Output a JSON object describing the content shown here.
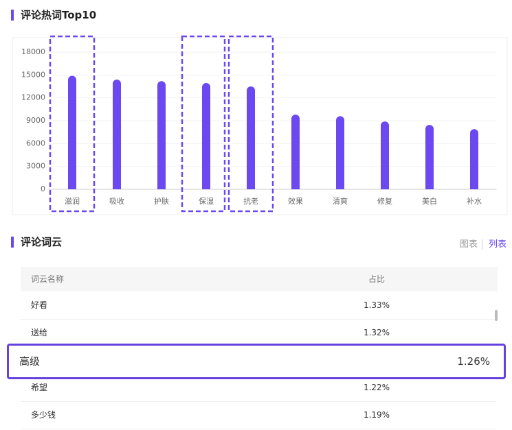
{
  "chart_section": {
    "title": "评论热词Top10"
  },
  "chart_data": {
    "type": "bar",
    "color": "#6b48ef",
    "categories": [
      "滋润",
      "吸收",
      "护肤",
      "保湿",
      "抗老",
      "效果",
      "清爽",
      "修复",
      "美白",
      "补水"
    ],
    "values": [
      14900,
      14400,
      14200,
      13950,
      13500,
      9800,
      9600,
      8900,
      8450,
      7900
    ],
    "ylim": [
      0,
      18000
    ],
    "yticks": [
      0,
      3000,
      6000,
      9000,
      12000,
      15000,
      18000
    ],
    "grid": true
  },
  "cloud_section": {
    "title": "评论词云",
    "tabs": [
      "图表",
      "列表"
    ]
  },
  "table": {
    "columns": [
      "词云名称",
      "占比"
    ],
    "rows": [
      [
        "好看",
        "1.33%"
      ],
      [
        "送给",
        "1.32%"
      ],
      [
        "高级",
        "1.26%"
      ],
      [
        "希望",
        "1.22%"
      ],
      [
        "多少钱",
        "1.19%"
      ]
    ]
  }
}
